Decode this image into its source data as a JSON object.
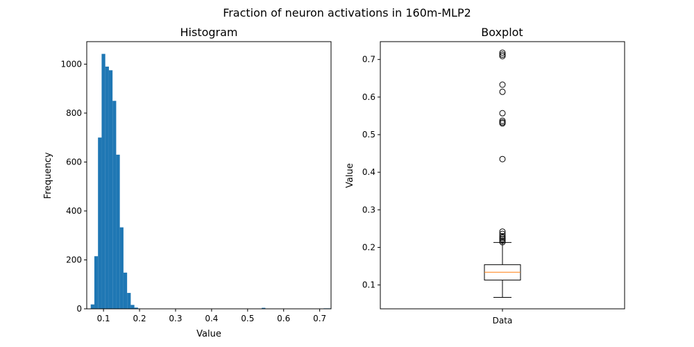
{
  "figure": {
    "suptitle": "Fraction of neuron activations in 160m-MLP2"
  },
  "chart_data": [
    {
      "type": "bar",
      "title": "Histogram",
      "xlabel": "Value",
      "ylabel": "Frequency",
      "xlim": [
        0.0535,
        0.7315
      ],
      "ylim": [
        0,
        1092
      ],
      "bin_start": 0.0645,
      "bin_width": 0.0101,
      "values": [
        18,
        215,
        700,
        1042,
        990,
        975,
        850,
        630,
        333,
        148,
        65,
        16,
        5,
        0,
        0,
        0,
        0,
        0,
        0,
        0,
        0,
        0,
        0,
        0,
        0,
        0,
        0,
        0,
        0,
        0,
        0,
        0,
        0,
        0,
        0,
        0,
        0,
        0,
        0,
        0,
        0,
        0,
        0,
        0,
        0,
        0,
        1,
        4,
        0,
        0,
        0,
        0,
        0,
        0,
        0,
        0,
        0,
        0,
        0,
        0,
        0,
        0,
        0,
        0,
        2,
        2
      ],
      "xticks": [
        0.1,
        0.2,
        0.3,
        0.4,
        0.5,
        0.6,
        0.7
      ],
      "xtick_labels": [
        "0.1",
        "0.2",
        "0.3",
        "0.4",
        "0.5",
        "0.6",
        "0.7"
      ],
      "yticks": [
        0,
        200,
        400,
        600,
        800,
        1000
      ],
      "ytick_labels": [
        "0",
        "200",
        "400",
        "600",
        "800",
        "1000"
      ],
      "color": "#1f77b4"
    },
    {
      "type": "box",
      "title": "Boxplot",
      "xlabel": "",
      "ylabel": "Value",
      "categories": [
        "Data"
      ],
      "ylim": [
        0.0365,
        0.7475
      ],
      "whisker_low": 0.067,
      "q1": 0.113,
      "median": 0.134,
      "q3": 0.154,
      "whisker_high": 0.213,
      "outliers": [
        0.214,
        0.218,
        0.222,
        0.226,
        0.23,
        0.236,
        0.242,
        0.435,
        0.53,
        0.533,
        0.537,
        0.557,
        0.614,
        0.633,
        0.709,
        0.713,
        0.718
      ],
      "yticks": [
        0.1,
        0.2,
        0.3,
        0.4,
        0.5,
        0.6,
        0.7
      ],
      "ytick_labels": [
        "0.1",
        "0.2",
        "0.3",
        "0.4",
        "0.5",
        "0.6",
        "0.7"
      ],
      "median_color": "#ff7f0e"
    }
  ]
}
